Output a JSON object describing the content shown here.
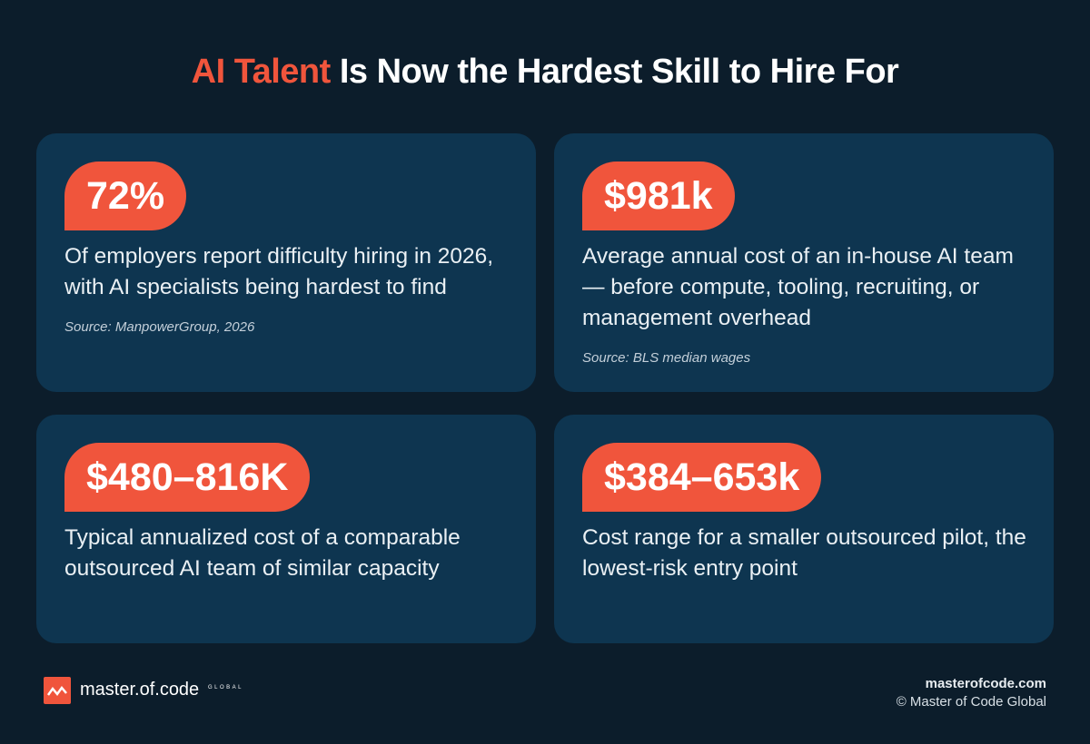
{
  "header": {
    "title_highlight": "AI Talent",
    "title_rest": "Is Now the Hardest Skill to Hire For"
  },
  "cards": [
    {
      "stat": "72%",
      "text": "Of employers report difficulty hiring in 2026, with AI specialists being hardest to find",
      "source": "Source: ManpowerGroup, 2026"
    },
    {
      "stat": "$981k",
      "text": "Average annual cost of an in-house AI team — before compute, tooling, recruiting, or management overhead",
      "source": "Source: BLS median wages"
    },
    {
      "stat": "$480–816K",
      "text": "Typical annualized cost of a comparable outsourced AI team of similar capacity"
    },
    {
      "stat": "$384–653k",
      "text": "Cost range for a smaller outsourced pilot, the lowest-risk entry point"
    }
  ],
  "footer": {
    "brand": "master.of.code",
    "brand_suffix": "GLOBAL",
    "site": "masterofcode.com",
    "copyright": "© Master of Code Global"
  }
}
